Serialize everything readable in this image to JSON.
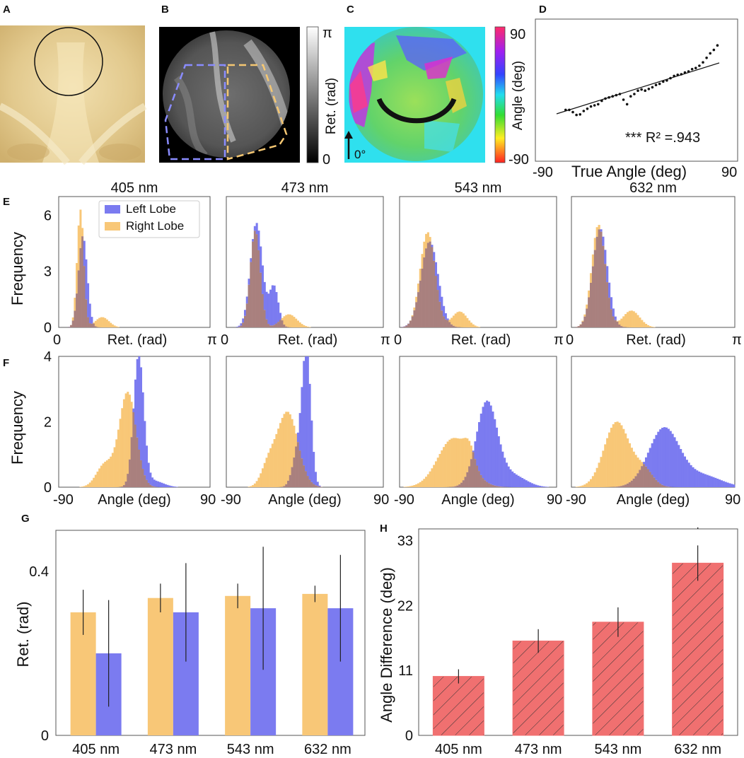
{
  "panel_labels": {
    "A": "A",
    "B": "B",
    "C": "C",
    "D": "D",
    "E": "E",
    "F": "F",
    "G": "G",
    "H": "H"
  },
  "colors": {
    "left_lobe": "#7b7bf0",
    "right_lobe": "#f8c777",
    "overlap": "#a9807e",
    "angle_bar": "#f07070"
  },
  "panel_b": {
    "colorbar_top": "π",
    "colorbar_bottom": "0",
    "colorbar_label": "Ret. (rad)"
  },
  "panel_c": {
    "colorbar_top": "90",
    "colorbar_bottom": "-90",
    "colorbar_label": "Angle (deg)",
    "arrow_label": "0°"
  },
  "chart_data": [
    {
      "panel": "D",
      "type": "scatter",
      "xlabel": "True Angle (deg)",
      "ylabel": "",
      "xlim": [
        -90,
        90
      ],
      "x_tick_labels": [
        "-90",
        "90"
      ],
      "fit": {
        "slope": 0.5,
        "intercept": 0
      },
      "annotation": "*** R² =.943",
      "x": [
        -80,
        -76,
        -72,
        -68,
        -64,
        -60,
        -56,
        -52,
        -48,
        -44,
        -40,
        -36,
        -32,
        -28,
        -24,
        -20,
        -16,
        -12,
        -8,
        -4,
        0,
        4,
        8,
        12,
        16,
        20,
        24,
        28,
        32,
        36,
        40,
        44,
        48,
        52,
        56,
        60,
        64,
        68,
        72,
        76,
        80,
        84,
        88
      ],
      "y": [
        -38,
        -38,
        -42,
        -47,
        -46,
        -40,
        -36,
        -32,
        -30,
        -28,
        -22,
        -18,
        -16,
        -14,
        -12,
        -10,
        -20,
        -28,
        -14,
        -10,
        -4,
        -2,
        -4,
        -1,
        2,
        6,
        8,
        12,
        14,
        18,
        22,
        24,
        25,
        28,
        30,
        34,
        36,
        40,
        46,
        54,
        62,
        68,
        76
      ]
    },
    {
      "panel": "E",
      "type": "histogram",
      "subtitle": "405 nm",
      "xlabel": "Ret. (rad)",
      "ylabel": "Frequency",
      "x_tick_labels": [
        "0",
        "π"
      ],
      "y_ticks": [
        "0",
        "3",
        "6"
      ],
      "ylim": [
        0,
        7
      ],
      "xlim": [
        0,
        3.1416
      ],
      "legend": [
        "Left Lobe",
        "Right Lobe"
      ],
      "series": [
        {
          "name": "Left Lobe",
          "mu": 0.5,
          "sigma": 0.09,
          "peak": 4.9,
          "tail_pos": 0,
          "tail_h": 0,
          "tail_w": 0
        },
        {
          "name": "Right Lobe",
          "mu": 0.45,
          "sigma": 0.07,
          "peak": 6.3,
          "tail_pos": 0.9,
          "tail_h": 0.55,
          "tail_w": 0.14
        }
      ]
    },
    {
      "panel": "E",
      "type": "histogram",
      "subtitle": "473 nm",
      "xlabel": "Ret. (rad)",
      "ylabel": "",
      "x_tick_labels": [
        "0",
        "π"
      ],
      "y_ticks": [],
      "ylim": [
        0,
        7
      ],
      "xlim": [
        0,
        3.1416
      ],
      "series": [
        {
          "name": "Left Lobe",
          "mu": 0.6,
          "sigma": 0.12,
          "peak": 5.6,
          "tail_pos": 0.95,
          "tail_h": 2.2,
          "tail_w": 0.09
        },
        {
          "name": "Right Lobe",
          "mu": 0.58,
          "sigma": 0.1,
          "peak": 5.2,
          "tail_pos": 1.25,
          "tail_h": 0.7,
          "tail_w": 0.16
        }
      ]
    },
    {
      "panel": "E",
      "type": "histogram",
      "subtitle": "543 nm",
      "xlabel": "Ret. (rad)",
      "ylabel": "",
      "x_tick_labels": [
        "0",
        "π"
      ],
      "y_ticks": [],
      "ylim": [
        0,
        7
      ],
      "xlim": [
        0,
        3.1416
      ],
      "series": [
        {
          "name": "Left Lobe",
          "mu": 0.6,
          "sigma": 0.17,
          "peak": 4.6,
          "tail_pos": 0,
          "tail_h": 0,
          "tail_w": 0
        },
        {
          "name": "Right Lobe",
          "mu": 0.56,
          "sigma": 0.15,
          "peak": 5.1,
          "tail_pos": 1.2,
          "tail_h": 0.85,
          "tail_w": 0.15
        }
      ]
    },
    {
      "panel": "E",
      "type": "histogram",
      "subtitle": "632 nm",
      "xlabel": "Ret. (rad)",
      "ylabel": "",
      "x_tick_labels": [
        "0",
        "π"
      ],
      "y_ticks": [],
      "ylim": [
        0,
        7
      ],
      "xlim": [
        0,
        3.1416
      ],
      "series": [
        {
          "name": "Left Lobe",
          "mu": 0.55,
          "sigma": 0.14,
          "peak": 5.3,
          "tail_pos": 0,
          "tail_h": 0,
          "tail_w": 0
        },
        {
          "name": "Right Lobe",
          "mu": 0.52,
          "sigma": 0.13,
          "peak": 5.5,
          "tail_pos": 1.15,
          "tail_h": 0.9,
          "tail_w": 0.16
        }
      ]
    },
    {
      "panel": "F",
      "type": "histogram",
      "subtitle": "",
      "xlabel": "Angle (deg)",
      "ylabel": "Frequency",
      "x_tick_labels": [
        "-90",
        "90"
      ],
      "y_ticks": [
        "0",
        "2",
        "4"
      ],
      "ylim": [
        0,
        4
      ],
      "xlim": [
        -90,
        90
      ],
      "series": [
        {
          "name": "Left Lobe",
          "mu": 5,
          "sigma": 6,
          "peak": 4.0,
          "tail_pos": 22,
          "tail_h": 0.2,
          "tail_w": 12
        },
        {
          "name": "Right Lobe",
          "mu": -8,
          "sigma": 10,
          "peak": 2.9,
          "tail_pos": -35,
          "tail_h": 0.7,
          "tail_w": 10
        }
      ]
    },
    {
      "panel": "F",
      "type": "histogram",
      "subtitle": "",
      "xlabel": "Angle (deg)",
      "ylabel": "",
      "x_tick_labels": [
        "-90",
        "90"
      ],
      "y_ticks": [],
      "ylim": [
        0,
        4
      ],
      "xlim": [
        -90,
        90
      ],
      "series": [
        {
          "name": "Left Lobe",
          "mu": 2,
          "sigma": 5,
          "peak": 4.0,
          "tail_pos": -8,
          "tail_h": 1.1,
          "tail_w": 6
        },
        {
          "name": "Right Lobe",
          "mu": -20,
          "sigma": 12,
          "peak": 2.3,
          "tail_pos": -42,
          "tail_h": 0.6,
          "tail_w": 8
        }
      ]
    },
    {
      "panel": "F",
      "type": "histogram",
      "subtitle": "",
      "xlabel": "Angle (deg)",
      "ylabel": "",
      "x_tick_labels": [
        "-90",
        "90"
      ],
      "y_ticks": [],
      "ylim": [
        0,
        4
      ],
      "xlim": [
        -90,
        90
      ],
      "series": [
        {
          "name": "Left Lobe",
          "mu": 10,
          "sigma": 12,
          "peak": 2.6,
          "tail_pos": 40,
          "tail_h": 0.35,
          "tail_w": 15
        },
        {
          "name": "Right Lobe",
          "mu": -28,
          "sigma": 18,
          "peak": 1.5,
          "tail_pos": -10,
          "tail_h": 0.5,
          "tail_w": 6
        }
      ]
    },
    {
      "panel": "F",
      "type": "histogram",
      "subtitle": "",
      "xlabel": "Angle (deg)",
      "ylabel": "",
      "x_tick_labels": [
        "-90",
        "90"
      ],
      "y_ticks": [],
      "ylim": [
        0,
        4
      ],
      "xlim": [
        -90,
        90
      ],
      "series": [
        {
          "name": "Left Lobe",
          "mu": 12,
          "sigma": 17,
          "peak": 1.8,
          "tail_pos": 55,
          "tail_h": 0.35,
          "tail_w": 20
        },
        {
          "name": "Right Lobe",
          "mu": -40,
          "sigma": 14,
          "peak": 2.0,
          "tail_pos": -10,
          "tail_h": 0.5,
          "tail_w": 10
        }
      ]
    },
    {
      "panel": "G",
      "type": "bar",
      "categories": [
        "405 nm",
        "473 nm",
        "543 nm",
        "632 nm"
      ],
      "ylabel": "Ret. (rad)",
      "ylim": [
        0,
        0.5
      ],
      "y_ticks": [
        "0",
        "0.4"
      ],
      "series": [
        {
          "name": "Right Lobe",
          "values": [
            0.3,
            0.335,
            0.34,
            0.345
          ],
          "errors": [
            0.055,
            0.035,
            0.03,
            0.02
          ]
        },
        {
          "name": "Left Lobe",
          "values": [
            0.2,
            0.3,
            0.31,
            0.31
          ],
          "errors": [
            0.13,
            0.12,
            0.15,
            0.13
          ]
        }
      ]
    },
    {
      "panel": "H",
      "type": "bar",
      "categories": [
        "405 nm",
        "473 nm",
        "543 nm",
        "632 nm"
      ],
      "ylabel": "Angle Difference (deg)",
      "ylim": [
        0,
        35
      ],
      "y_ticks": [
        "0",
        "11",
        "22",
        "33"
      ],
      "series": [
        {
          "name": "Angle Difference",
          "values": [
            10,
            16,
            19.2,
            29.2
          ],
          "errors": [
            1.2,
            2.0,
            2.5,
            3.0
          ]
        }
      ],
      "annotation": "*"
    }
  ]
}
